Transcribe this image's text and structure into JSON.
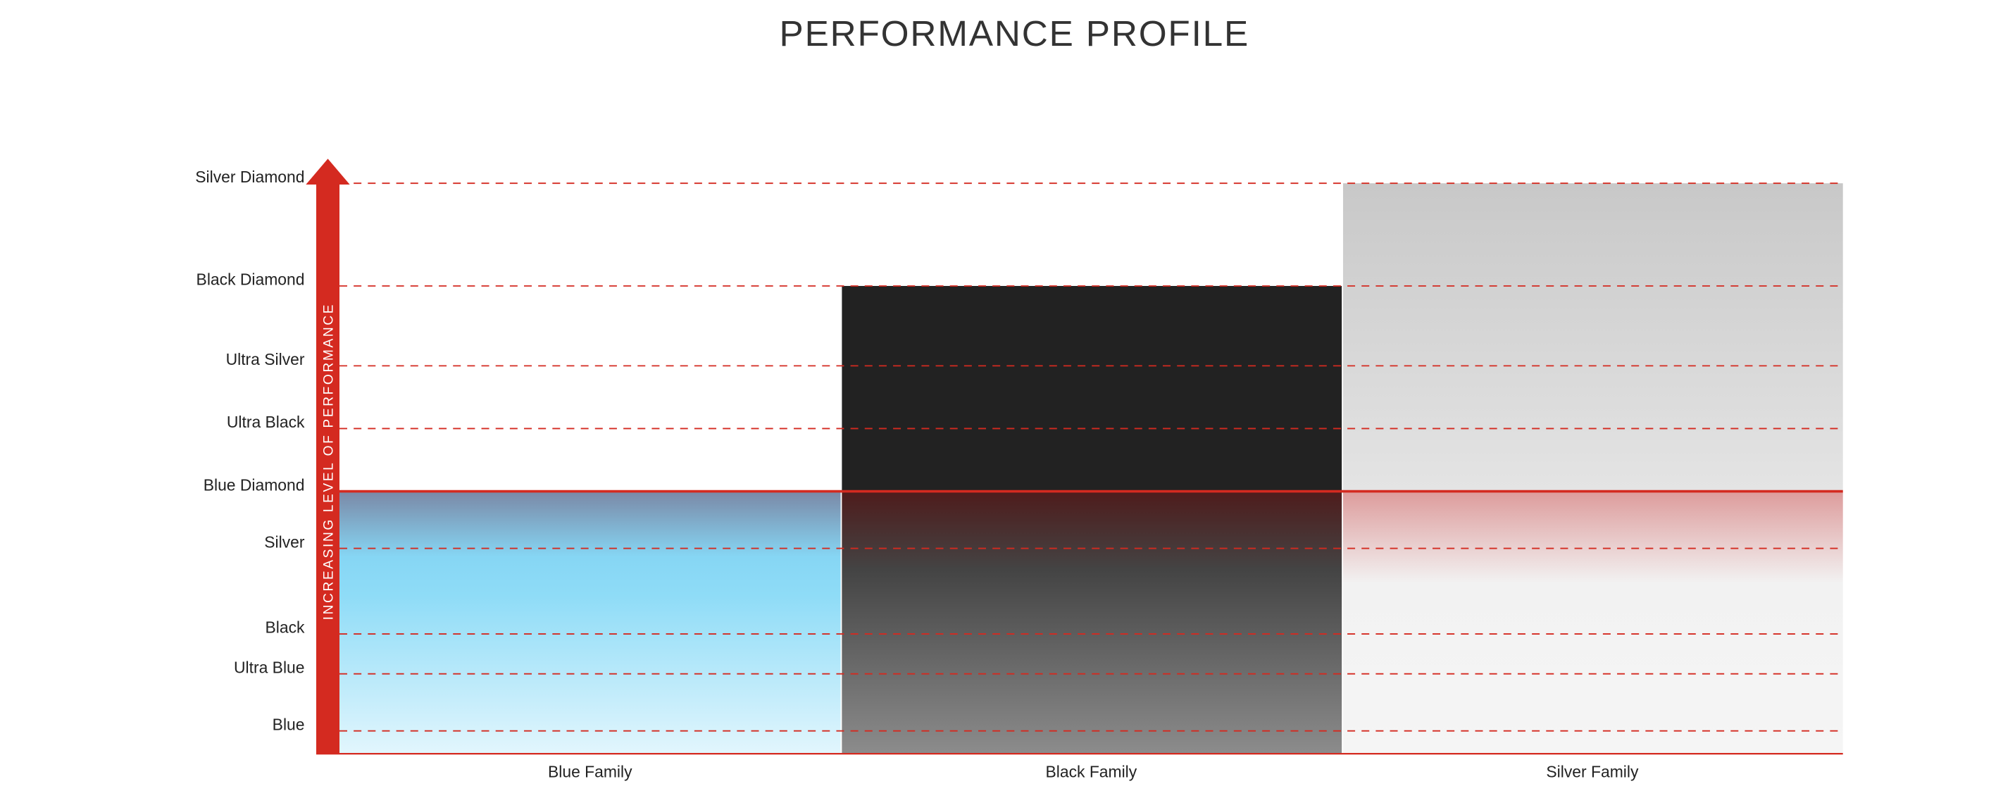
{
  "chart_data": {
    "type": "bar",
    "title": "PERFORMANCE PROFILE",
    "y_label": "INCREASING LEVEL OF PERFORMANCE",
    "categories": [
      "Blue Family",
      "Black Family",
      "Silver Family"
    ],
    "values": [
      46,
      82,
      100
    ],
    "ylim": [
      0,
      100
    ],
    "yticks": [
      {
        "value": 4,
        "label": "Blue"
      },
      {
        "value": 14,
        "label": "Ultra Blue"
      },
      {
        "value": 21,
        "label": "Black"
      },
      {
        "value": 36,
        "label": "Silver"
      },
      {
        "value": 46,
        "label": "Blue Diamond"
      },
      {
        "value": 57,
        "label": "Ultra Black"
      },
      {
        "value": 68,
        "label": "Ultra Silver"
      },
      {
        "value": 82,
        "label": "Black Diamond"
      },
      {
        "value": 100,
        "label": "Silver Diamond"
      }
    ],
    "reference_line": 46,
    "grid": true,
    "grid_color": "#d42a20"
  }
}
